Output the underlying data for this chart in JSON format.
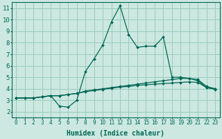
{
  "xlabel": "Humidex (Indice chaleur)",
  "background_color": "#cce8e0",
  "grid_color": "#99ccbb",
  "line_color": "#006655",
  "xlim": [
    -0.5,
    23.5
  ],
  "ylim": [
    1.5,
    11.5
  ],
  "xticks": [
    0,
    1,
    2,
    3,
    4,
    5,
    6,
    7,
    8,
    9,
    10,
    11,
    12,
    13,
    14,
    15,
    16,
    17,
    18,
    19,
    20,
    21,
    22,
    23
  ],
  "yticks": [
    2,
    3,
    4,
    5,
    6,
    7,
    8,
    9,
    10,
    11
  ],
  "line1_x": [
    0,
    1,
    2,
    3,
    4,
    5,
    6,
    7,
    8,
    9,
    10,
    11,
    12,
    13,
    14,
    15,
    16,
    17,
    18,
    19,
    20,
    21,
    22,
    23
  ],
  "line1_y": [
    3.2,
    3.2,
    3.2,
    3.3,
    3.4,
    2.5,
    2.4,
    3.0,
    5.5,
    6.6,
    7.8,
    9.8,
    11.2,
    8.7,
    7.6,
    7.7,
    7.7,
    8.5,
    5.0,
    5.0,
    4.9,
    4.7,
    4.1,
    4.0
  ],
  "line2_x": [
    0,
    1,
    2,
    3,
    4,
    5,
    6,
    7,
    8,
    9,
    10,
    11,
    12,
    13,
    14,
    15,
    16,
    17,
    18,
    19,
    20,
    21,
    22,
    23
  ],
  "line2_y": [
    3.2,
    3.2,
    3.2,
    3.3,
    3.4,
    3.4,
    3.5,
    3.6,
    3.8,
    3.9,
    4.0,
    4.1,
    4.2,
    4.3,
    4.4,
    4.5,
    4.6,
    4.7,
    4.8,
    4.9,
    4.9,
    4.8,
    4.2,
    4.0
  ],
  "line3_x": [
    0,
    1,
    2,
    3,
    4,
    5,
    6,
    7,
    8,
    9,
    10,
    11,
    12,
    13,
    14,
    15,
    16,
    17,
    18,
    19,
    20,
    21,
    22,
    23
  ],
  "line3_y": [
    3.2,
    3.2,
    3.2,
    3.3,
    3.4,
    3.4,
    3.5,
    3.6,
    3.75,
    3.85,
    3.95,
    4.05,
    4.15,
    4.2,
    4.3,
    4.35,
    4.4,
    4.45,
    4.5,
    4.55,
    4.6,
    4.55,
    4.1,
    3.95
  ],
  "xtick_fontsize": 5.5,
  "ytick_fontsize": 6.5,
  "xlabel_fontsize": 7.0
}
